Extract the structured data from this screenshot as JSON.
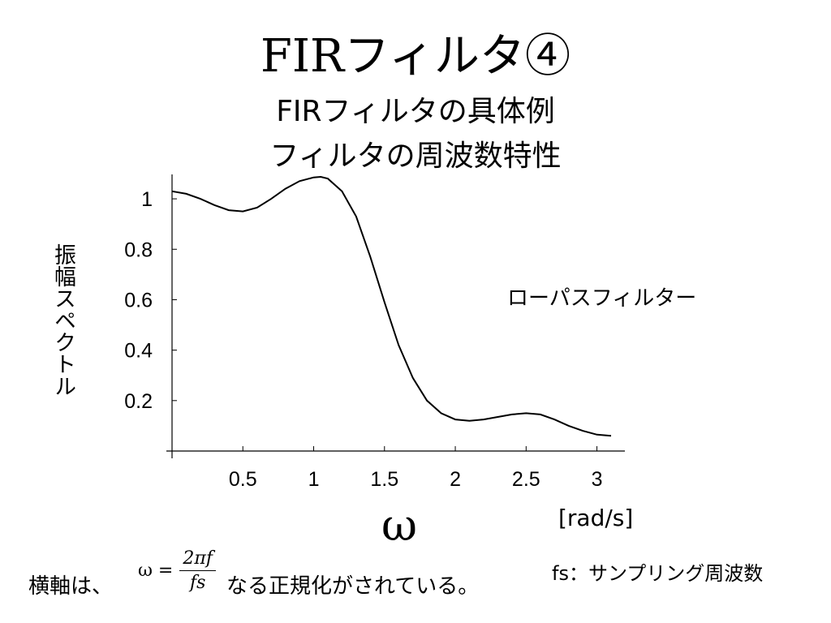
{
  "slide": {
    "title": "FIRフィルタ④",
    "subtitle_1": "FIRフィルタの具体例",
    "subtitle_2": "フィルタの周波数特性",
    "y_axis_label": "振幅スペクトル",
    "annotation": "ローパスフィルター",
    "x_symbol": "ω",
    "x_unit": "[rad/s]",
    "footnote_prefix": "横軸は、",
    "formula_lhs": "ω =",
    "formula_numerator": "2πf",
    "formula_denominator": "fs",
    "footnote_suffix": "なる正規化がされている。",
    "fs_note": "fs：サンプリング周波数"
  },
  "chart_data": {
    "type": "line",
    "x": [
      0.0,
      0.1,
      0.2,
      0.3,
      0.4,
      0.5,
      0.6,
      0.7,
      0.8,
      0.9,
      1.0,
      1.05,
      1.1,
      1.2,
      1.3,
      1.4,
      1.5,
      1.6,
      1.7,
      1.8,
      1.9,
      2.0,
      2.1,
      2.2,
      2.3,
      2.4,
      2.5,
      2.6,
      2.7,
      2.8,
      2.9,
      3.0,
      3.1
    ],
    "y": [
      1.03,
      1.02,
      1.0,
      0.975,
      0.955,
      0.95,
      0.965,
      1.0,
      1.04,
      1.07,
      1.085,
      1.087,
      1.08,
      1.03,
      0.93,
      0.77,
      0.59,
      0.42,
      0.29,
      0.2,
      0.15,
      0.125,
      0.12,
      0.125,
      0.135,
      0.145,
      0.15,
      0.145,
      0.125,
      0.1,
      0.08,
      0.065,
      0.06
    ],
    "xlim": [
      0,
      3.14
    ],
    "ylim": [
      0,
      1.1
    ],
    "xticks": [
      0.5,
      1,
      1.5,
      2,
      2.5,
      3
    ],
    "xtick_labels": [
      "0.5",
      "1",
      "1.5",
      "2",
      "2.5",
      "3"
    ],
    "yticks": [
      0.2,
      0.4,
      0.6,
      0.8,
      1
    ],
    "ytick_labels": [
      "0.2",
      "0.4",
      "0.6",
      "0.8",
      "1"
    ],
    "grid": false,
    "line_color": "#000000"
  }
}
